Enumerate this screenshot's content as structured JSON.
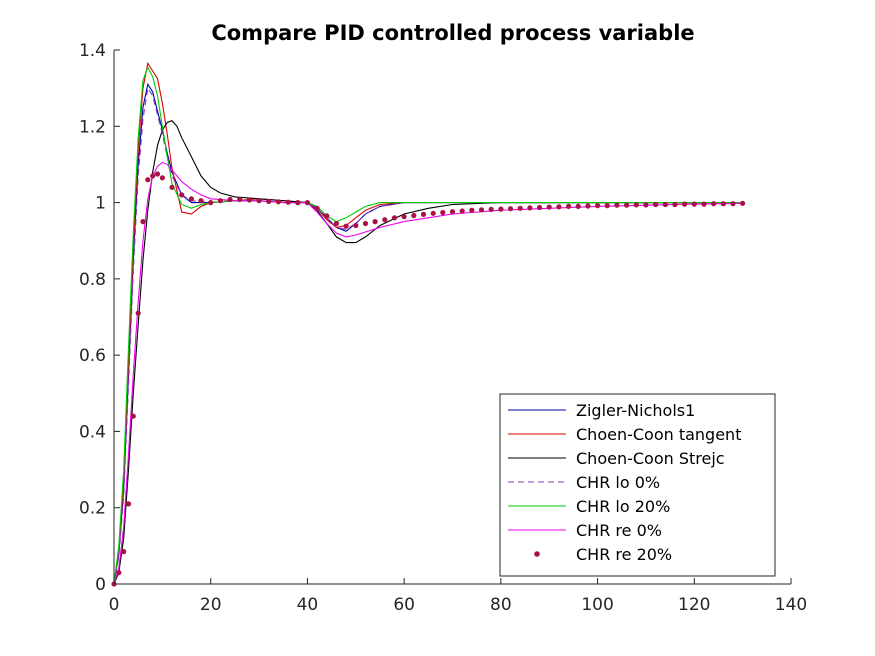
{
  "chart_data": {
    "type": "line",
    "title": "Compare PID controlled process variable",
    "xlabel": "",
    "ylabel": "",
    "xlim": [
      0,
      140
    ],
    "ylim": [
      0,
      1.4
    ],
    "xticks": [
      0,
      20,
      40,
      60,
      80,
      100,
      120,
      140
    ],
    "yticks": [
      0,
      0.2,
      0.4,
      0.6,
      0.8,
      1,
      1.2,
      1.4
    ],
    "xtick_labels": [
      "0",
      "20",
      "40",
      "60",
      "80",
      "100",
      "120",
      "140"
    ],
    "ytick_labels": [
      "0",
      "0.2",
      "0.4",
      "0.6",
      "0.8",
      "1",
      "1.2",
      "1.4"
    ],
    "grid": false,
    "legend_position": "bottom-right",
    "series": [
      {
        "name": "Zigler-Nichols1",
        "style": "solid",
        "color": "#0000aa",
        "x": [
          0,
          1,
          2,
          3,
          4,
          5,
          6,
          7,
          8,
          9,
          10,
          11,
          12,
          14,
          16,
          20,
          25,
          30,
          35,
          40,
          42,
          44,
          46,
          48,
          50,
          52,
          55,
          60,
          70,
          80,
          100,
          130
        ],
        "y": [
          0,
          0.08,
          0.25,
          0.55,
          0.85,
          1.1,
          1.25,
          1.31,
          1.29,
          1.24,
          1.19,
          1.13,
          1.08,
          1.02,
          1.0,
          1.0,
          1.005,
          1.005,
          1.0,
          1.0,
          0.985,
          0.96,
          0.935,
          0.925,
          0.945,
          0.97,
          0.99,
          1.0,
          1.0,
          1.0,
          1.0,
          1.0
        ]
      },
      {
        "name": "Choen-Coon tangent",
        "style": "solid",
        "color": "#dd0000",
        "x": [
          0,
          1,
          2,
          3,
          4,
          5,
          6,
          7,
          8,
          9,
          10,
          11,
          12,
          14,
          16,
          18,
          20,
          25,
          30,
          35,
          40,
          42,
          44,
          46,
          48,
          50,
          52,
          55,
          60,
          70,
          80,
          100,
          130
        ],
        "y": [
          0,
          0.09,
          0.27,
          0.58,
          0.88,
          1.14,
          1.3,
          1.365,
          1.345,
          1.325,
          1.26,
          1.18,
          1.09,
          0.975,
          0.97,
          0.99,
          1.0,
          1.005,
          1.01,
          1.005,
          1.0,
          0.985,
          0.955,
          0.935,
          0.94,
          0.96,
          0.98,
          0.995,
          1.0,
          1.0,
          1.0,
          1.0,
          1.0
        ]
      },
      {
        "name": "Choen-Coon Strejc",
        "style": "solid",
        "color": "#000000",
        "x": [
          0,
          1,
          2,
          3,
          4,
          5,
          6,
          7,
          8,
          9,
          10,
          11,
          12,
          13,
          14,
          16,
          18,
          20,
          22,
          25,
          30,
          35,
          40,
          42,
          44,
          46,
          48,
          50,
          52,
          55,
          60,
          65,
          70,
          80,
          100,
          130
        ],
        "y": [
          0,
          0.03,
          0.12,
          0.3,
          0.5,
          0.68,
          0.85,
          0.98,
          1.08,
          1.15,
          1.19,
          1.21,
          1.215,
          1.2,
          1.17,
          1.12,
          1.07,
          1.04,
          1.025,
          1.015,
          1.01,
          1.005,
          1.0,
          0.98,
          0.945,
          0.91,
          0.895,
          0.895,
          0.91,
          0.94,
          0.97,
          0.985,
          0.995,
          1.0,
          1.0,
          1.0
        ]
      },
      {
        "name": "CHR lo 0%",
        "style": "dashed",
        "color": "#8833bb",
        "x": [
          0,
          1,
          2,
          3,
          4,
          5,
          6,
          7,
          8,
          9,
          10,
          11,
          12,
          14,
          16,
          20,
          25,
          30,
          35,
          40,
          42,
          44,
          46,
          48,
          50,
          52,
          55,
          60,
          70,
          80,
          100,
          130
        ],
        "y": [
          0,
          0.07,
          0.23,
          0.52,
          0.82,
          1.07,
          1.22,
          1.3,
          1.28,
          1.23,
          1.18,
          1.12,
          1.07,
          1.02,
          1.005,
          1.0,
          1.005,
          1.005,
          1.0,
          1.0,
          0.985,
          0.96,
          0.935,
          0.93,
          0.945,
          0.97,
          0.99,
          1.0,
          1.0,
          1.0,
          1.0,
          1.0
        ]
      },
      {
        "name": "CHR lo 20%",
        "style": "solid",
        "color": "#00cc00",
        "x": [
          0,
          1,
          2,
          3,
          4,
          5,
          6,
          7,
          8,
          9,
          10,
          11,
          12,
          14,
          16,
          18,
          20,
          25,
          30,
          35,
          40,
          42,
          44,
          46,
          48,
          50,
          52,
          55,
          60,
          70,
          80,
          100,
          130
        ],
        "y": [
          0,
          0.1,
          0.3,
          0.62,
          0.92,
          1.17,
          1.32,
          1.355,
          1.33,
          1.28,
          1.2,
          1.12,
          1.05,
          0.995,
          0.985,
          0.995,
          1.0,
          1.005,
          1.005,
          1.0,
          1.0,
          0.99,
          0.965,
          0.95,
          0.96,
          0.975,
          0.99,
          1.0,
          1.0,
          1.0,
          1.0,
          1.0,
          1.0
        ]
      },
      {
        "name": "CHR re 0%",
        "style": "solid",
        "color": "#ee00ee",
        "x": [
          0,
          1,
          2,
          3,
          4,
          5,
          6,
          7,
          8,
          9,
          10,
          11,
          12,
          13,
          14,
          16,
          18,
          20,
          25,
          30,
          35,
          40,
          42,
          44,
          46,
          48,
          50,
          55,
          60,
          65,
          70,
          80,
          90,
          100,
          110,
          120,
          130
        ],
        "y": [
          0,
          0.04,
          0.15,
          0.34,
          0.55,
          0.74,
          0.9,
          1.01,
          1.07,
          1.095,
          1.105,
          1.1,
          1.085,
          1.07,
          1.055,
          1.035,
          1.02,
          1.01,
          1.005,
          1.005,
          1.0,
          1.0,
          0.975,
          0.945,
          0.92,
          0.91,
          0.915,
          0.935,
          0.95,
          0.96,
          0.97,
          0.98,
          0.985,
          0.99,
          0.993,
          0.996,
          0.998
        ]
      },
      {
        "name": "CHR re 20%",
        "style": "dots",
        "color": "#aa1144",
        "x": [
          0,
          1,
          2,
          3,
          4,
          5,
          6,
          7,
          8,
          9,
          10,
          12,
          14,
          16,
          18,
          20,
          22,
          24,
          26,
          28,
          30,
          32,
          34,
          36,
          38,
          40,
          42,
          44,
          46,
          48,
          50,
          52,
          54,
          56,
          58,
          60,
          62,
          64,
          66,
          68,
          70,
          72,
          74,
          76,
          78,
          80,
          82,
          84,
          86,
          88,
          90,
          92,
          94,
          96,
          98,
          100,
          102,
          104,
          106,
          108,
          110,
          112,
          114,
          116,
          118,
          120,
          122,
          124,
          126,
          128,
          130
        ],
        "y": [
          0,
          0.03,
          0.085,
          0.21,
          0.44,
          0.71,
          0.95,
          1.06,
          1.07,
          1.075,
          1.065,
          1.04,
          1.02,
          1.01,
          1.005,
          1.0,
          1.005,
          1.008,
          1.008,
          1.007,
          1.005,
          1.003,
          1.002,
          1.001,
          1.0,
          1.0,
          0.985,
          0.965,
          0.945,
          0.938,
          0.94,
          0.945,
          0.95,
          0.955,
          0.96,
          0.963,
          0.966,
          0.969,
          0.972,
          0.974,
          0.976,
          0.978,
          0.98,
          0.981,
          0.982,
          0.983,
          0.984,
          0.985,
          0.986,
          0.987,
          0.988,
          0.989,
          0.99,
          0.99,
          0.991,
          0.992,
          0.992,
          0.993,
          0.993,
          0.994,
          0.994,
          0.995,
          0.995,
          0.995,
          0.996,
          0.996,
          0.996,
          0.997,
          0.997,
          0.997,
          0.998
        ]
      }
    ]
  }
}
